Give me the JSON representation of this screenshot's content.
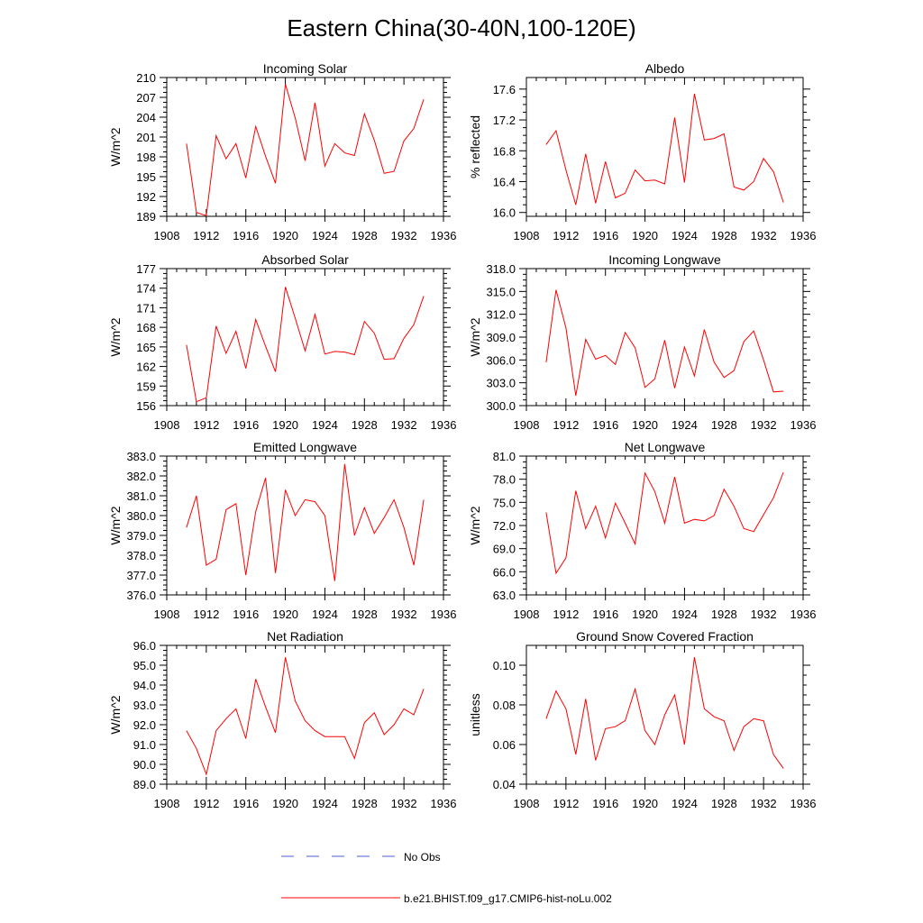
{
  "figure_title": "Eastern China(30-40N,100-120E)",
  "legend": {
    "obs_label": "No Obs",
    "obs_color": "#4a5fd0",
    "model_label": "b.e21.BHIST.f09_g17.CMIP6-hist-noLu.002",
    "model_color": "#ff0000"
  },
  "chart_data": [
    {
      "type": "line",
      "title": "Incoming Solar",
      "ylabel": "W/m^2",
      "xlim": [
        1908,
        1936
      ],
      "ylim": [
        189,
        210
      ],
      "x_ticks": [
        1908,
        1912,
        1916,
        1920,
        1924,
        1928,
        1932,
        1936
      ],
      "y_ticks": [
        189,
        192,
        195,
        198,
        201,
        204,
        207,
        210
      ],
      "y_tick_labels": [
        "189",
        "192",
        "195",
        "198",
        "201",
        "204",
        "207",
        "210"
      ],
      "series": [
        {
          "color": "#ff0000",
          "x": [
            1910,
            1911,
            1912,
            1913,
            1914,
            1915,
            1916,
            1917,
            1918,
            1919,
            1920,
            1921,
            1922,
            1923,
            1924,
            1925,
            1926,
            1927,
            1928,
            1929,
            1930,
            1931,
            1932,
            1933,
            1934
          ],
          "values": [
            200.0,
            189.6,
            189.1,
            201.2,
            197.7,
            200.0,
            194.8,
            202.6,
            198.1,
            194.0,
            209.0,
            203.9,
            197.4,
            206.2,
            196.6,
            200.0,
            198.6,
            198.2,
            204.5,
            200.5,
            195.5,
            195.8,
            200.4,
            202.3,
            206.7
          ]
        }
      ]
    },
    {
      "type": "line",
      "title": "Albedo",
      "ylabel": "% reflected",
      "xlim": [
        1908,
        1936
      ],
      "ylim": [
        15.95,
        17.75
      ],
      "x_ticks": [
        1908,
        1912,
        1916,
        1920,
        1924,
        1928,
        1932,
        1936
      ],
      "y_ticks": [
        16.0,
        16.4,
        16.8,
        17.2,
        17.6
      ],
      "y_tick_labels": [
        "16.0",
        "16.4",
        "16.8",
        "17.2",
        "17.6"
      ],
      "series": [
        {
          "color": "#ff0000",
          "x": [
            1910,
            1911,
            1912,
            1913,
            1914,
            1915,
            1916,
            1917,
            1918,
            1919,
            1920,
            1921,
            1922,
            1923,
            1924,
            1925,
            1926,
            1927,
            1928,
            1929,
            1930,
            1931,
            1932,
            1933,
            1934
          ],
          "values": [
            16.88,
            17.06,
            16.55,
            16.1,
            16.76,
            16.12,
            16.66,
            16.19,
            16.25,
            16.55,
            16.41,
            16.42,
            16.37,
            17.23,
            16.39,
            17.54,
            16.94,
            16.96,
            17.02,
            16.33,
            16.29,
            16.4,
            16.7,
            16.53,
            16.13
          ]
        }
      ]
    },
    {
      "type": "line",
      "title": "Absorbed Solar",
      "ylabel": "W/m^2",
      "xlim": [
        1908,
        1936
      ],
      "ylim": [
        156,
        177
      ],
      "x_ticks": [
        1908,
        1912,
        1916,
        1920,
        1924,
        1928,
        1932,
        1936
      ],
      "y_ticks": [
        156,
        159,
        162,
        165,
        168,
        171,
        174,
        177
      ],
      "y_tick_labels": [
        "156",
        "159",
        "162",
        "165",
        "168",
        "171",
        "174",
        "177"
      ],
      "series": [
        {
          "color": "#ff0000",
          "x": [
            1910,
            1911,
            1912,
            1913,
            1914,
            1915,
            1916,
            1917,
            1918,
            1919,
            1920,
            1921,
            1922,
            1923,
            1924,
            1925,
            1926,
            1927,
            1928,
            1929,
            1930,
            1931,
            1932,
            1933,
            1934
          ],
          "values": [
            165.3,
            156.6,
            157.2,
            168.2,
            164.0,
            167.4,
            161.7,
            169.2,
            165.1,
            161.2,
            174.2,
            169.4,
            164.4,
            170.0,
            163.9,
            164.3,
            164.2,
            163.8,
            168.9,
            167.1,
            163.1,
            163.2,
            166.3,
            168.4,
            172.8
          ]
        }
      ]
    },
    {
      "type": "line",
      "title": "Incoming Longwave",
      "ylabel": "W/m^2",
      "xlim": [
        1908,
        1936
      ],
      "ylim": [
        300,
        318
      ],
      "x_ticks": [
        1908,
        1912,
        1916,
        1920,
        1924,
        1928,
        1932,
        1936
      ],
      "y_ticks": [
        300,
        303,
        306,
        309,
        312,
        315,
        318
      ],
      "y_tick_labels": [
        "300.0",
        "303.0",
        "306.0",
        "309.0",
        "312.0",
        "315.0",
        "318.0"
      ],
      "series": [
        {
          "color": "#ff0000",
          "x": [
            1910,
            1911,
            1912,
            1913,
            1914,
            1915,
            1916,
            1917,
            1918,
            1919,
            1920,
            1921,
            1922,
            1923,
            1924,
            1925,
            1926,
            1927,
            1928,
            1929,
            1930,
            1931,
            1932,
            1933,
            1934
          ],
          "values": [
            305.7,
            315.2,
            310.2,
            301.3,
            308.7,
            306.1,
            306.6,
            305.4,
            309.6,
            307.6,
            302.4,
            303.5,
            308.6,
            302.3,
            307.7,
            303.9,
            310.0,
            305.7,
            303.7,
            304.6,
            308.4,
            309.8,
            306.0,
            301.8,
            301.9
          ]
        }
      ]
    },
    {
      "type": "line",
      "title": "Emitted Longwave",
      "ylabel": "W/m^2",
      "xlim": [
        1908,
        1936
      ],
      "ylim": [
        376,
        383
      ],
      "x_ticks": [
        1908,
        1912,
        1916,
        1920,
        1924,
        1928,
        1932,
        1936
      ],
      "y_ticks": [
        376,
        377,
        378,
        379,
        380,
        381,
        382,
        383
      ],
      "y_tick_labels": [
        "376.0",
        "377.0",
        "378.0",
        "379.0",
        "380.0",
        "381.0",
        "382.0",
        "383.0"
      ],
      "series": [
        {
          "color": "#ff0000",
          "x": [
            1910,
            1911,
            1912,
            1913,
            1914,
            1915,
            1916,
            1917,
            1918,
            1919,
            1920,
            1921,
            1922,
            1923,
            1924,
            1925,
            1926,
            1927,
            1928,
            1929,
            1930,
            1931,
            1932,
            1933,
            1934
          ],
          "values": [
            379.4,
            381.0,
            377.5,
            377.8,
            380.3,
            380.6,
            377.0,
            380.2,
            381.9,
            377.1,
            381.3,
            380.0,
            380.8,
            380.7,
            380.0,
            376.7,
            382.6,
            379.0,
            380.4,
            379.1,
            379.9,
            380.8,
            379.4,
            377.5,
            380.8
          ]
        }
      ]
    },
    {
      "type": "line",
      "title": "Net Longwave",
      "ylabel": "W/m^2",
      "xlim": [
        1908,
        1936
      ],
      "ylim": [
        63,
        81
      ],
      "x_ticks": [
        1908,
        1912,
        1916,
        1920,
        1924,
        1928,
        1932,
        1936
      ],
      "y_ticks": [
        63,
        66,
        69,
        72,
        75,
        78,
        81
      ],
      "y_tick_labels": [
        "63.0",
        "66.0",
        "69.0",
        "72.0",
        "75.0",
        "78.0",
        "81.0"
      ],
      "series": [
        {
          "color": "#ff0000",
          "x": [
            1910,
            1911,
            1912,
            1913,
            1914,
            1915,
            1916,
            1917,
            1918,
            1919,
            1920,
            1921,
            1922,
            1923,
            1924,
            1925,
            1926,
            1927,
            1928,
            1929,
            1930,
            1931,
            1932,
            1933,
            1934
          ],
          "values": [
            73.7,
            65.8,
            67.8,
            76.5,
            71.6,
            74.5,
            70.4,
            74.9,
            72.3,
            69.6,
            78.8,
            76.4,
            72.3,
            78.3,
            72.3,
            72.8,
            72.6,
            73.3,
            76.7,
            74.5,
            71.6,
            71.2,
            73.4,
            75.6,
            78.9
          ]
        }
      ]
    },
    {
      "type": "line",
      "title": "Net Radiation",
      "ylabel": "W/m^2",
      "xlim": [
        1908,
        1936
      ],
      "ylim": [
        89,
        96
      ],
      "x_ticks": [
        1908,
        1912,
        1916,
        1920,
        1924,
        1928,
        1932,
        1936
      ],
      "y_ticks": [
        89,
        90,
        91,
        92,
        93,
        94,
        95,
        96
      ],
      "y_tick_labels": [
        "89.0",
        "90.0",
        "91.0",
        "92.0",
        "93.0",
        "94.0",
        "95.0",
        "96.0"
      ],
      "series": [
        {
          "color": "#ff0000",
          "x": [
            1910,
            1911,
            1912,
            1913,
            1914,
            1915,
            1916,
            1917,
            1918,
            1919,
            1920,
            1921,
            1922,
            1923,
            1924,
            1925,
            1926,
            1927,
            1928,
            1929,
            1930,
            1931,
            1932,
            1933,
            1934
          ],
          "values": [
            91.7,
            90.8,
            89.5,
            91.7,
            92.3,
            92.8,
            91.3,
            94.3,
            92.9,
            91.6,
            95.4,
            93.2,
            92.2,
            91.7,
            91.4,
            91.4,
            91.4,
            90.3,
            92.1,
            92.6,
            91.5,
            92.0,
            92.8,
            92.5,
            93.8
          ]
        }
      ]
    },
    {
      "type": "line",
      "title": "Ground Snow Covered Fraction",
      "ylabel": "unitless",
      "xlim": [
        1908,
        1936
      ],
      "ylim": [
        0.04,
        0.11
      ],
      "x_ticks": [
        1908,
        1912,
        1916,
        1920,
        1924,
        1928,
        1932,
        1936
      ],
      "y_ticks": [
        0.04,
        0.06,
        0.08,
        0.1
      ],
      "y_tick_labels": [
        "0.04",
        "0.06",
        "0.08",
        "0.10"
      ],
      "series": [
        {
          "color": "#ff0000",
          "x": [
            1910,
            1911,
            1912,
            1913,
            1914,
            1915,
            1916,
            1917,
            1918,
            1919,
            1920,
            1921,
            1922,
            1923,
            1924,
            1925,
            1926,
            1927,
            1928,
            1929,
            1930,
            1931,
            1932,
            1933,
            1934
          ],
          "values": [
            0.073,
            0.087,
            0.078,
            0.055,
            0.083,
            0.052,
            0.068,
            0.069,
            0.072,
            0.088,
            0.067,
            0.06,
            0.075,
            0.085,
            0.06,
            0.104,
            0.078,
            0.074,
            0.072,
            0.057,
            0.069,
            0.073,
            0.072,
            0.055,
            0.048
          ]
        }
      ]
    }
  ]
}
